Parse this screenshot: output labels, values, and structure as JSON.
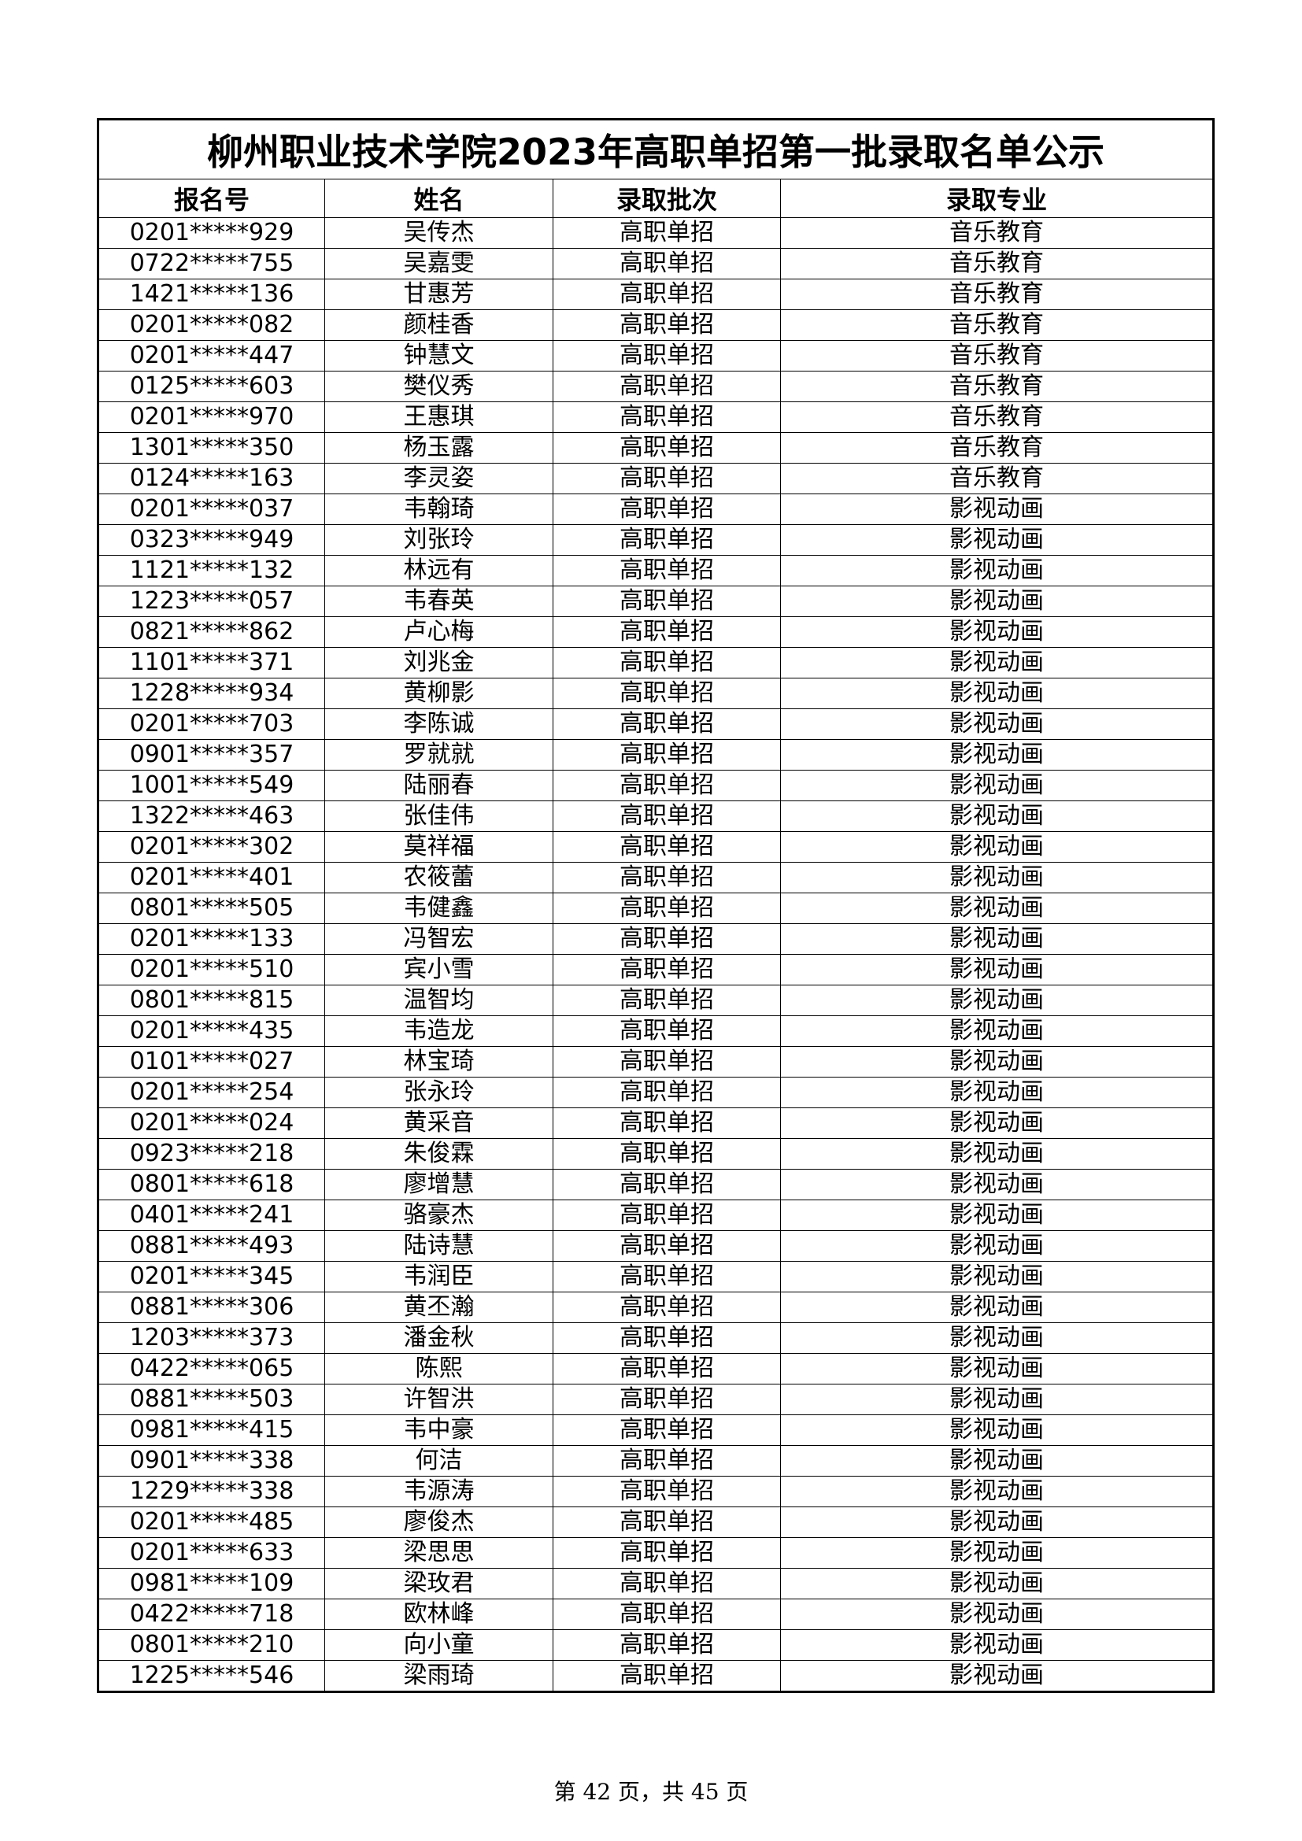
{
  "table": {
    "title": "柳州职业技术学院2023年高职单招第一批录取名单公示",
    "header": [
      "报名号",
      "姓名",
      "录取批次",
      "录取专业"
    ],
    "rows": [
      [
        "0201*****929",
        "吴传杰",
        "高职单招",
        "音乐教育"
      ],
      [
        "0722*****755",
        "吴嘉雯",
        "高职单招",
        "音乐教育"
      ],
      [
        "1421*****136",
        "甘惠芳",
        "高职单招",
        "音乐教育"
      ],
      [
        "0201*****082",
        "颜桂香",
        "高职单招",
        "音乐教育"
      ],
      [
        "0201*****447",
        "钟慧文",
        "高职单招",
        "音乐教育"
      ],
      [
        "0125*****603",
        "樊仪秀",
        "高职单招",
        "音乐教育"
      ],
      [
        "0201*****970",
        "王惠琪",
        "高职单招",
        "音乐教育"
      ],
      [
        "1301*****350",
        "杨玉露",
        "高职单招",
        "音乐教育"
      ],
      [
        "0124*****163",
        "李灵姿",
        "高职单招",
        "音乐教育"
      ],
      [
        "0201*****037",
        "韦翰琦",
        "高职单招",
        "影视动画"
      ],
      [
        "0323*****949",
        "刘张玲",
        "高职单招",
        "影视动画"
      ],
      [
        "1121*****132",
        "林远有",
        "高职单招",
        "影视动画"
      ],
      [
        "1223*****057",
        "韦春英",
        "高职单招",
        "影视动画"
      ],
      [
        "0821*****862",
        "卢心梅",
        "高职单招",
        "影视动画"
      ],
      [
        "1101*****371",
        "刘兆金",
        "高职单招",
        "影视动画"
      ],
      [
        "1228*****934",
        "黄柳影",
        "高职单招",
        "影视动画"
      ],
      [
        "0201*****703",
        "李陈诚",
        "高职单招",
        "影视动画"
      ],
      [
        "0901*****357",
        "罗就就",
        "高职单招",
        "影视动画"
      ],
      [
        "1001*****549",
        "陆丽春",
        "高职单招",
        "影视动画"
      ],
      [
        "1322*****463",
        "张佳伟",
        "高职单招",
        "影视动画"
      ],
      [
        "0201*****302",
        "莫祥福",
        "高职单招",
        "影视动画"
      ],
      [
        "0201*****401",
        "农筱蕾",
        "高职单招",
        "影视动画"
      ],
      [
        "0801*****505",
        "韦健鑫",
        "高职单招",
        "影视动画"
      ],
      [
        "0201*****133",
        "冯智宏",
        "高职单招",
        "影视动画"
      ],
      [
        "0201*****510",
        "宾小雪",
        "高职单招",
        "影视动画"
      ],
      [
        "0801*****815",
        "温智均",
        "高职单招",
        "影视动画"
      ],
      [
        "0201*****435",
        "韦造龙",
        "高职单招",
        "影视动画"
      ],
      [
        "0101*****027",
        "林宝琦",
        "高职单招",
        "影视动画"
      ],
      [
        "0201*****254",
        "张永玲",
        "高职单招",
        "影视动画"
      ],
      [
        "0201*****024",
        "黄采音",
        "高职单招",
        "影视动画"
      ],
      [
        "0923*****218",
        "朱俊霖",
        "高职单招",
        "影视动画"
      ],
      [
        "0801*****618",
        "廖增慧",
        "高职单招",
        "影视动画"
      ],
      [
        "0401*****241",
        "骆豪杰",
        "高职单招",
        "影视动画"
      ],
      [
        "0881*****493",
        "陆诗慧",
        "高职单招",
        "影视动画"
      ],
      [
        "0201*****345",
        "韦润臣",
        "高职单招",
        "影视动画"
      ],
      [
        "0881*****306",
        "黄丕瀚",
        "高职单招",
        "影视动画"
      ],
      [
        "1203*****373",
        "潘金秋",
        "高职单招",
        "影视动画"
      ],
      [
        "0422*****065",
        "陈熙",
        "高职单招",
        "影视动画"
      ],
      [
        "0881*****503",
        "许智洪",
        "高职单招",
        "影视动画"
      ],
      [
        "0981*****415",
        "韦中豪",
        "高职单招",
        "影视动画"
      ],
      [
        "0901*****338",
        "何洁",
        "高职单招",
        "影视动画"
      ],
      [
        "1229*****338",
        "韦源涛",
        "高职单招",
        "影视动画"
      ],
      [
        "0201*****485",
        "廖俊杰",
        "高职单招",
        "影视动画"
      ],
      [
        "0201*****633",
        "梁思思",
        "高职单招",
        "影视动画"
      ],
      [
        "0981*****109",
        "梁玫君",
        "高职单招",
        "影视动画"
      ],
      [
        "0422*****718",
        "欧林峰",
        "高职单招",
        "影视动画"
      ],
      [
        "0801*****210",
        "向小童",
        "高职单招",
        "影视动画"
      ],
      [
        "1225*****546",
        "梁雨琦",
        "高职单招",
        "影视动画"
      ]
    ]
  },
  "footer": "第 42 页，共 45 页"
}
